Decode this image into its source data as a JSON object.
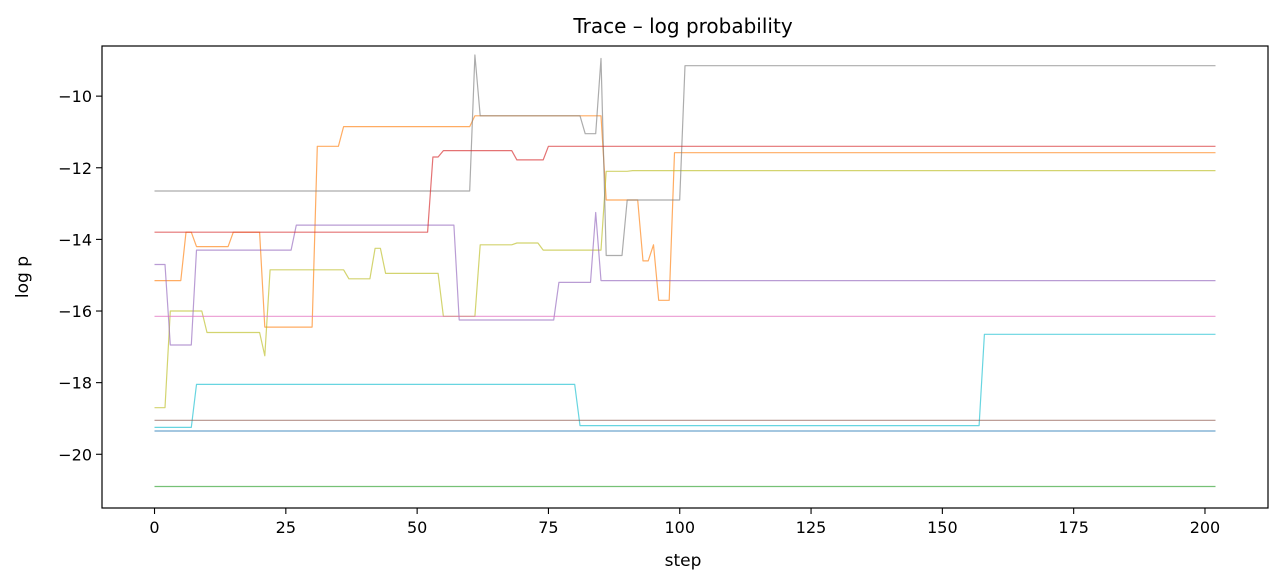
{
  "chart_data": {
    "type": "line",
    "title": "Trace – log probability",
    "xlabel": "step",
    "ylabel": "log p",
    "xlim": [
      -10,
      212
    ],
    "ylim": [
      -21.5,
      -8.6
    ],
    "x_ticks": [
      0,
      25,
      50,
      75,
      100,
      125,
      150,
      175,
      200
    ],
    "y_ticks": [
      -20,
      -18,
      -16,
      -14,
      -12,
      -10
    ],
    "grid": false,
    "legend": "none",
    "series": [
      {
        "color": "#ff7f0e",
        "points": [
          [
            0,
            -15.15
          ],
          [
            5,
            -15.15
          ],
          [
            6,
            -13.8
          ],
          [
            7,
            -13.8
          ],
          [
            8,
            -14.2
          ],
          [
            14,
            -14.2
          ],
          [
            15,
            -13.8
          ],
          [
            20,
            -13.8
          ],
          [
            21,
            -16.45
          ],
          [
            30,
            -16.45
          ],
          [
            31,
            -11.4
          ],
          [
            35,
            -11.4
          ],
          [
            36,
            -10.85
          ],
          [
            60,
            -10.85
          ],
          [
            61,
            -10.55
          ],
          [
            85,
            -10.55
          ],
          [
            86,
            -12.9
          ],
          [
            92,
            -12.9
          ],
          [
            93,
            -14.6
          ],
          [
            94,
            -14.6
          ],
          [
            95,
            -14.15
          ],
          [
            96,
            -15.7
          ],
          [
            98,
            -15.7
          ],
          [
            99,
            -11.58
          ],
          [
            202,
            -11.58
          ]
        ]
      },
      {
        "color": "#bcbd22",
        "points": [
          [
            0,
            -18.7
          ],
          [
            2,
            -18.7
          ],
          [
            3,
            -16.0
          ],
          [
            9,
            -16.0
          ],
          [
            10,
            -16.6
          ],
          [
            20,
            -16.6
          ],
          [
            21,
            -17.25
          ],
          [
            22,
            -14.85
          ],
          [
            36,
            -14.85
          ],
          [
            37,
            -15.1
          ],
          [
            41,
            -15.1
          ],
          [
            42,
            -14.25
          ],
          [
            43,
            -14.25
          ],
          [
            44,
            -14.95
          ],
          [
            54,
            -14.95
          ],
          [
            55,
            -16.15
          ],
          [
            61,
            -16.15
          ],
          [
            62,
            -14.15
          ],
          [
            68,
            -14.15
          ],
          [
            69,
            -14.1
          ],
          [
            73,
            -14.1
          ],
          [
            74,
            -14.3
          ],
          [
            85,
            -14.3
          ],
          [
            86,
            -12.1
          ],
          [
            90,
            -12.1
          ],
          [
            91,
            -12.08
          ],
          [
            202,
            -12.08
          ]
        ]
      },
      {
        "color": "#9467bd",
        "points": [
          [
            0,
            -14.7
          ],
          [
            2,
            -14.7
          ],
          [
            3,
            -16.95
          ],
          [
            7,
            -16.95
          ],
          [
            8,
            -14.3
          ],
          [
            26,
            -14.3
          ],
          [
            27,
            -13.6
          ],
          [
            57,
            -13.6
          ],
          [
            58,
            -16.25
          ],
          [
            76,
            -16.25
          ],
          [
            77,
            -15.2
          ],
          [
            83,
            -15.2
          ],
          [
            84,
            -13.25
          ],
          [
            85,
            -15.15
          ],
          [
            202,
            -15.15
          ]
        ]
      },
      {
        "color": "#7f7f7f",
        "points": [
          [
            0,
            -12.65
          ],
          [
            60,
            -12.65
          ],
          [
            61,
            -8.85
          ],
          [
            62,
            -10.55
          ],
          [
            81,
            -10.55
          ],
          [
            82,
            -11.05
          ],
          [
            84,
            -11.05
          ],
          [
            85,
            -8.95
          ],
          [
            86,
            -14.45
          ],
          [
            89,
            -14.45
          ],
          [
            90,
            -12.9
          ],
          [
            100,
            -12.9
          ],
          [
            101,
            -9.15
          ],
          [
            202,
            -9.15
          ]
        ]
      },
      {
        "color": "#d62728",
        "points": [
          [
            0,
            -13.8
          ],
          [
            52,
            -13.8
          ],
          [
            53,
            -11.7
          ],
          [
            54,
            -11.7
          ],
          [
            55,
            -11.52
          ],
          [
            68,
            -11.52
          ],
          [
            69,
            -11.78
          ],
          [
            74,
            -11.78
          ],
          [
            75,
            -11.4
          ],
          [
            202,
            -11.4
          ]
        ]
      },
      {
        "color": "#17becf",
        "points": [
          [
            0,
            -19.25
          ],
          [
            7,
            -19.25
          ],
          [
            8,
            -18.05
          ],
          [
            80,
            -18.05
          ],
          [
            81,
            -19.2
          ],
          [
            157,
            -19.2
          ],
          [
            158,
            -16.65
          ],
          [
            202,
            -16.65
          ]
        ]
      },
      {
        "color": "#e377c2",
        "points": [
          [
            0,
            -16.15
          ],
          [
            202,
            -16.15
          ]
        ]
      },
      {
        "color": "#8c564b",
        "points": [
          [
            0,
            -19.05
          ],
          [
            202,
            -19.05
          ]
        ]
      },
      {
        "color": "#1f77b4",
        "points": [
          [
            0,
            -19.35
          ],
          [
            202,
            -19.35
          ]
        ]
      },
      {
        "color": "#2ca02c",
        "points": [
          [
            0,
            -20.9
          ],
          [
            202,
            -20.9
          ]
        ]
      }
    ]
  }
}
